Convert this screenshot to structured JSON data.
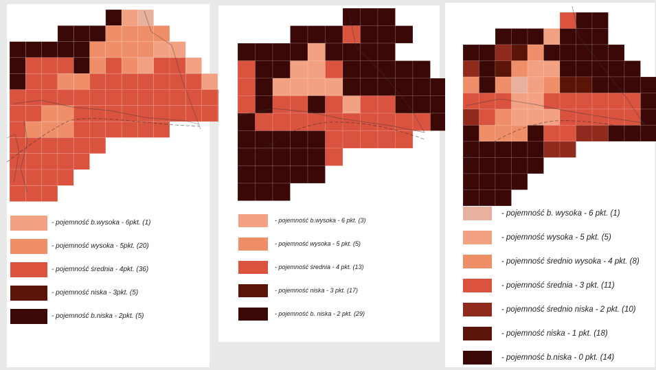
{
  "colors": {
    "very_pale": "#e8b19d",
    "pale": "#f2a183",
    "light": "#ee8f6a",
    "medium": "#d9533f",
    "dark_red": "#8f2a1d",
    "dark": "#5b1408",
    "very_dark": "#3a0907"
  },
  "maps": [
    {
      "name": "map-left",
      "legend": [
        {
          "color": "#f2a183",
          "label": "- pojemność b.wysoka - 6pkt. (1)"
        },
        {
          "color": "#ee8f6a",
          "label": "- pojemność wysoka - 5pkt. (20)"
        },
        {
          "color": "#d9533f",
          "label": "- pojemność średnia - 4pkt. (36)"
        },
        {
          "color": "#5b1408",
          "label": "- pojemność niska - 3pkt. (5)"
        },
        {
          "color": "#3a0907",
          "label": "- pojemność b.niska - 2pkt. (5)"
        }
      ]
    },
    {
      "name": "map-middle",
      "legend": [
        {
          "color": "#f2a183",
          "label": "- pojemność b.wysoka - 6 pkt. (3)"
        },
        {
          "color": "#ee8f6a",
          "label": "- pojemność wysoka - 5 pkt. (5)"
        },
        {
          "color": "#d9533f",
          "label": "- pojemność średnia - 4 pkt. (13)"
        },
        {
          "color": "#5b1408",
          "label": "- pojemność niska - 3 pkt. (17)"
        },
        {
          "color": "#3a0907",
          "label": "- pojemność b. niska - 2 pkt. (29)"
        }
      ]
    },
    {
      "name": "map-right",
      "legend": [
        {
          "color": "#e8b19d",
          "label": "- pojemność b. wysoka - 6 pkt. (1)"
        },
        {
          "color": "#f2a183",
          "label": "- pojemność wysoka - 5 pkt. (5)"
        },
        {
          "color": "#ee8f6a",
          "label": "- pojemność średnio wysoka - 4 pkt. (8)"
        },
        {
          "color": "#d9533f",
          "label": "- pojemność średnia - 3 pkt. (11)"
        },
        {
          "color": "#8f2a1d",
          "label": "- pojemność średnio niska - 2 pkt. (10)"
        },
        {
          "color": "#5b1408",
          "label": "- pojemność niska - 1 pkt. (18)"
        },
        {
          "color": "#3a0907",
          "label": "- pojemność b.niska - 0 pkt. (14)"
        }
      ]
    }
  ]
}
